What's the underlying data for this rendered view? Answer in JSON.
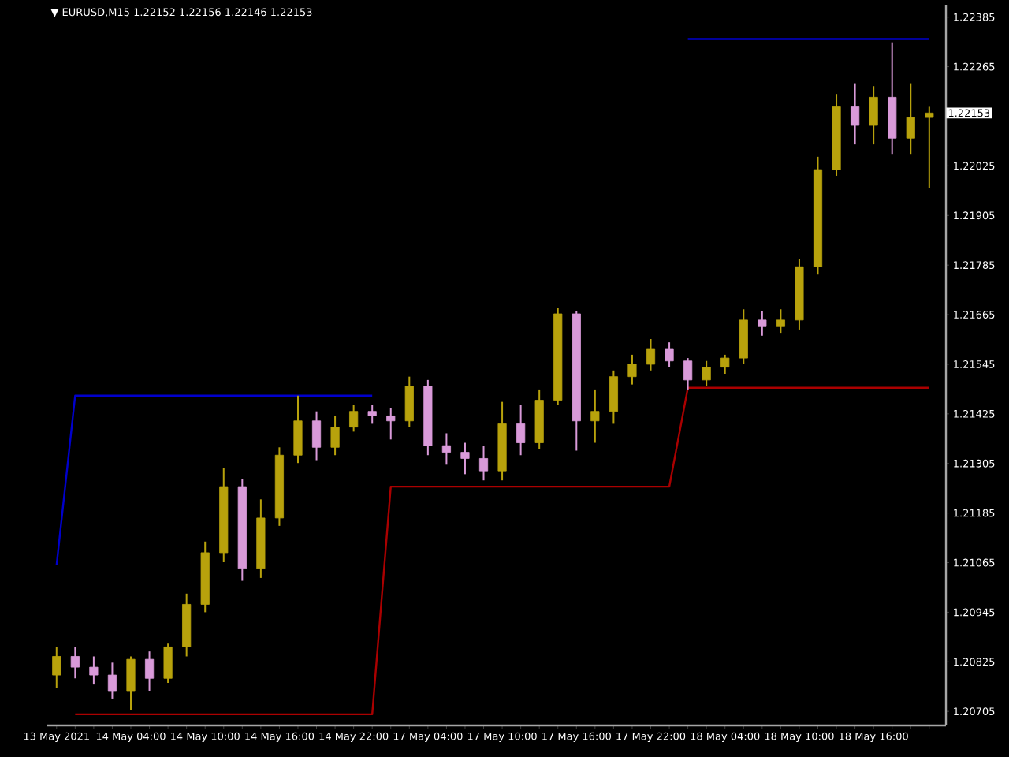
{
  "chart_data": {
    "type": "candlestick",
    "title": "▼ EURUSD,M15  1.22152 1.22156 1.22146 1.22153",
    "categories": [
      "13 May 2021",
      null,
      null,
      null,
      "14 May 04:00",
      null,
      null,
      null,
      "14 May 10:00",
      null,
      null,
      null,
      "14 May 16:00",
      null,
      null,
      null,
      "14 May 22:00",
      null,
      null,
      null,
      "17 May 04:00",
      null,
      null,
      null,
      "17 May 10:00",
      null,
      null,
      null,
      "17 May 16:00",
      null,
      null,
      null,
      "17 May 22:00",
      null,
      null,
      null,
      "18 May 04:00",
      null,
      null,
      null,
      "18 May 10:00",
      null,
      null,
      null,
      "18 May 16:00",
      null,
      null,
      null
    ],
    "ohlc": [
      [
        1.20793,
        1.20861,
        1.20762,
        1.20838
      ],
      [
        1.20838,
        1.20861,
        1.20785,
        1.20812
      ],
      [
        1.20812,
        1.20838,
        1.2077,
        1.20793
      ],
      [
        1.20793,
        1.20823,
        1.20736,
        1.20755
      ],
      [
        1.20755,
        1.20838,
        1.20709,
        1.20831
      ],
      [
        1.20831,
        1.2085,
        1.20755,
        1.20785
      ],
      [
        1.20785,
        1.20869,
        1.20774,
        1.20861
      ],
      [
        1.20861,
        1.2099,
        1.20838,
        1.20964
      ],
      [
        1.20964,
        1.21116,
        1.20945,
        1.21089
      ],
      [
        1.21089,
        1.21294,
        1.21066,
        1.21249
      ],
      [
        1.21249,
        1.21268,
        1.21021,
        1.21051
      ],
      [
        1.21051,
        1.21218,
        1.21028,
        1.21173
      ],
      [
        1.21173,
        1.21344,
        1.21154,
        1.21325
      ],
      [
        1.21325,
        1.21469,
        1.21306,
        1.21408
      ],
      [
        1.21408,
        1.21431,
        1.21313,
        1.21344
      ],
      [
        1.21344,
        1.2142,
        1.21325,
        1.21393
      ],
      [
        1.21393,
        1.21446,
        1.21382,
        1.21431
      ],
      [
        1.21431,
        1.21446,
        1.21401,
        1.2142
      ],
      [
        1.2142,
        1.21439,
        1.21363,
        1.21408
      ],
      [
        1.21408,
        1.21515,
        1.21393,
        1.21492
      ],
      [
        1.21492,
        1.21507,
        1.21325,
        1.21348
      ],
      [
        1.21348,
        1.21378,
        1.21302,
        1.21332
      ],
      [
        1.21332,
        1.21355,
        1.21279,
        1.21317
      ],
      [
        1.21317,
        1.21348,
        1.21264,
        1.21287
      ],
      [
        1.21287,
        1.21454,
        1.21264,
        1.21401
      ],
      [
        1.21401,
        1.21446,
        1.21325,
        1.21355
      ],
      [
        1.21355,
        1.21484,
        1.2134,
        1.21458
      ],
      [
        1.21458,
        1.21682,
        1.21446,
        1.21667
      ],
      [
        1.21667,
        1.21674,
        1.21336,
        1.21408
      ],
      [
        1.21408,
        1.21484,
        1.21355,
        1.21431
      ],
      [
        1.21431,
        1.2153,
        1.21401,
        1.21515
      ],
      [
        1.21515,
        1.21568,
        1.21496,
        1.21545
      ],
      [
        1.21545,
        1.21606,
        1.2153,
        1.21583
      ],
      [
        1.21583,
        1.21598,
        1.21538,
        1.21553
      ],
      [
        1.21553,
        1.2156,
        1.21484,
        1.21507
      ],
      [
        1.21507,
        1.21553,
        1.21492,
        1.21538
      ],
      [
        1.21538,
        1.21568,
        1.21522,
        1.2156
      ],
      [
        1.2156,
        1.21678,
        1.21545,
        1.21652
      ],
      [
        1.21652,
        1.21674,
        1.21614,
        1.21636
      ],
      [
        1.21636,
        1.21678,
        1.21621,
        1.21652
      ],
      [
        1.21652,
        1.218,
        1.21629,
        1.21781
      ],
      [
        1.21781,
        1.22047,
        1.21762,
        1.22016
      ],
      [
        1.22016,
        1.22199,
        1.22001,
        1.22168
      ],
      [
        1.22168,
        1.22225,
        1.22077,
        1.22123
      ],
      [
        1.22123,
        1.22218,
        1.22077,
        1.22191
      ],
      [
        1.22191,
        1.22324,
        1.22054,
        1.22092
      ],
      [
        1.22092,
        1.22225,
        1.22054,
        1.22142
      ],
      [
        1.22142,
        1.22168,
        1.21971,
        1.22153
      ]
    ],
    "colors": [
      "#b8a20c",
      "#d99ad9",
      "#d99ad9",
      "#d99ad9",
      "#b8a20c",
      "#d99ad9",
      "#b8a20c",
      "#b8a20c",
      "#b8a20c",
      "#b8a20c",
      "#d99ad9",
      "#b8a20c",
      "#b8a20c",
      "#b8a20c",
      "#d99ad9",
      "#b8a20c",
      "#b8a20c",
      "#d99ad9",
      "#d99ad9",
      "#b8a20c",
      "#d99ad9",
      "#d99ad9",
      "#d99ad9",
      "#d99ad9",
      "#b8a20c",
      "#d99ad9",
      "#b8a20c",
      "#b8a20c",
      "#d99ad9",
      "#b8a20c",
      "#b8a20c",
      "#b8a20c",
      "#b8a20c",
      "#d99ad9",
      "#d99ad9",
      "#b8a20c",
      "#b8a20c",
      "#b8a20c",
      "#d99ad9",
      "#b8a20c",
      "#b8a20c",
      "#b8a20c",
      "#b8a20c",
      "#d99ad9",
      "#b8a20c",
      "#d99ad9",
      "#b8a20c",
      "#b8a20c"
    ],
    "series": [
      {
        "type": "line",
        "color": "#0000cc",
        "values": [
          1.21059,
          1.21469,
          1.21469,
          1.21469,
          1.21469,
          1.21469,
          1.21469,
          1.21469,
          1.21469,
          1.21469,
          1.21469,
          1.21469,
          1.21469,
          1.21469,
          1.21469,
          1.21469,
          1.21469,
          1.21469,
          null,
          null,
          null,
          null,
          null,
          null,
          null,
          null,
          null,
          null,
          null,
          null,
          null,
          null,
          null,
          null,
          1.22332,
          1.22332,
          1.22332,
          1.22332,
          1.22332,
          1.22332,
          1.22332,
          1.22332,
          1.22332,
          1.22332,
          1.22332,
          1.22332,
          1.22332,
          1.22332
        ]
      },
      {
        "type": "line",
        "color": "#aa0000",
        "values": [
          null,
          1.20698,
          1.20698,
          1.20698,
          1.20698,
          1.20698,
          1.20698,
          1.20698,
          1.20698,
          1.20698,
          1.20698,
          1.20698,
          1.20698,
          1.20698,
          1.20698,
          1.20698,
          1.20698,
          1.20698,
          1.21249,
          1.21249,
          1.21249,
          1.21249,
          1.21249,
          1.21249,
          1.21249,
          1.21249,
          1.21249,
          1.21249,
          1.21249,
          1.21249,
          1.21249,
          1.21249,
          1.21249,
          1.21249,
          1.21488,
          1.21488,
          1.21488,
          1.21488,
          1.21488,
          1.21488,
          1.21488,
          1.21488,
          1.21488,
          1.21488,
          1.21488,
          1.21488,
          1.21488,
          1.21488
        ]
      }
    ],
    "annotations": [
      "1.22153"
    ],
    "ylim": [
      1.20671,
      1.22415
    ],
    "yticks": [
      1.20705,
      1.20825,
      1.20945,
      1.21065,
      1.21185,
      1.21305,
      1.21425,
      1.21545,
      1.21665,
      1.21785,
      1.21905,
      1.22025,
      {
        "value": 1.22145,
        "label": null
      },
      1.22265,
      1.22385
    ]
  }
}
